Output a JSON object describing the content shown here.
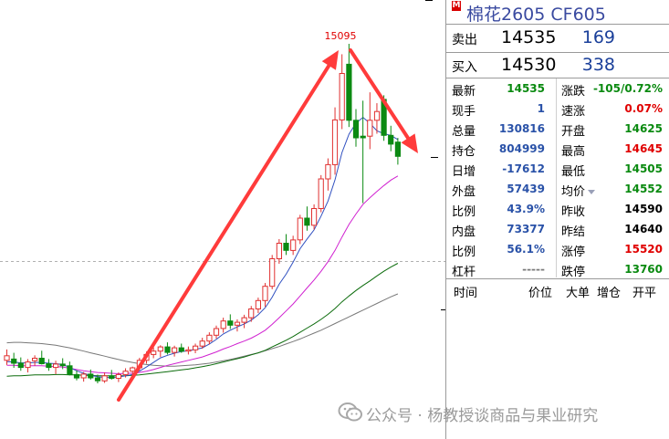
{
  "chart": {
    "peak_label": "15095",
    "colors": {
      "up_candle": "#e03030",
      "down_candle": "#0b8a12",
      "ma_fast": "#3050c0",
      "ma_mid": "#d020d0",
      "ma_slow": "#0b6b0b",
      "ma_long": "#787878",
      "arrow": "#ff3b3b",
      "ref_line": "#b0b0b0"
    },
    "candles": [
      {
        "o": 14338,
        "h": 14364,
        "l": 14327,
        "c": 14349,
        "color": "red"
      },
      {
        "o": 14341,
        "h": 14356,
        "l": 14320,
        "c": 14331,
        "color": "green"
      },
      {
        "o": 14331,
        "h": 14345,
        "l": 14313,
        "c": 14321,
        "color": "green"
      },
      {
        "o": 14321,
        "h": 14341,
        "l": 14309,
        "c": 14334,
        "color": "red"
      },
      {
        "o": 14337,
        "h": 14350,
        "l": 14325,
        "c": 14343,
        "color": "red"
      },
      {
        "o": 14343,
        "h": 14361,
        "l": 14328,
        "c": 14330,
        "color": "green"
      },
      {
        "o": 14330,
        "h": 14341,
        "l": 14313,
        "c": 14321,
        "color": "green"
      },
      {
        "o": 14321,
        "h": 14337,
        "l": 14305,
        "c": 14329,
        "color": "red"
      },
      {
        "o": 14329,
        "h": 14343,
        "l": 14317,
        "c": 14325,
        "color": "green"
      },
      {
        "o": 14325,
        "h": 14335,
        "l": 14302,
        "c": 14304,
        "color": "green"
      },
      {
        "o": 14304,
        "h": 14314,
        "l": 14290,
        "c": 14296,
        "color": "green"
      },
      {
        "o": 14296,
        "h": 14310,
        "l": 14287,
        "c": 14305,
        "color": "red"
      },
      {
        "o": 14305,
        "h": 14316,
        "l": 14292,
        "c": 14296,
        "color": "green"
      },
      {
        "o": 14296,
        "h": 14304,
        "l": 14283,
        "c": 14289,
        "color": "green"
      },
      {
        "o": 14289,
        "h": 14309,
        "l": 14284,
        "c": 14301,
        "color": "red"
      },
      {
        "o": 14301,
        "h": 14315,
        "l": 14292,
        "c": 14295,
        "color": "green"
      },
      {
        "o": 14295,
        "h": 14309,
        "l": 14286,
        "c": 14304,
        "color": "red"
      },
      {
        "o": 14304,
        "h": 14319,
        "l": 14297,
        "c": 14312,
        "color": "red"
      },
      {
        "o": 14312,
        "h": 14323,
        "l": 14302,
        "c": 14320,
        "color": "red"
      },
      {
        "o": 14320,
        "h": 14344,
        "l": 14314,
        "c": 14338,
        "color": "red"
      },
      {
        "o": 14338,
        "h": 14359,
        "l": 14330,
        "c": 14352,
        "color": "red"
      },
      {
        "o": 14352,
        "h": 14369,
        "l": 14343,
        "c": 14360,
        "color": "red"
      },
      {
        "o": 14360,
        "h": 14374,
        "l": 14346,
        "c": 14370,
        "color": "red"
      },
      {
        "o": 14370,
        "h": 14381,
        "l": 14352,
        "c": 14357,
        "color": "green"
      },
      {
        "o": 14357,
        "h": 14373,
        "l": 14347,
        "c": 14368,
        "color": "red"
      },
      {
        "o": 14368,
        "h": 14378,
        "l": 14356,
        "c": 14360,
        "color": "green"
      },
      {
        "o": 14360,
        "h": 14371,
        "l": 14352,
        "c": 14363,
        "color": "red"
      },
      {
        "o": 14363,
        "h": 14378,
        "l": 14355,
        "c": 14372,
        "color": "red"
      },
      {
        "o": 14372,
        "h": 14392,
        "l": 14366,
        "c": 14384,
        "color": "red"
      },
      {
        "o": 14384,
        "h": 14405,
        "l": 14376,
        "c": 14398,
        "color": "red"
      },
      {
        "o": 14398,
        "h": 14421,
        "l": 14390,
        "c": 14414,
        "color": "red"
      },
      {
        "o": 14414,
        "h": 14440,
        "l": 14404,
        "c": 14432,
        "color": "red"
      },
      {
        "o": 14432,
        "h": 14448,
        "l": 14413,
        "c": 14422,
        "color": "green"
      },
      {
        "o": 14422,
        "h": 14436,
        "l": 14407,
        "c": 14429,
        "color": "red"
      },
      {
        "o": 14429,
        "h": 14447,
        "l": 14415,
        "c": 14440,
        "color": "red"
      },
      {
        "o": 14440,
        "h": 14468,
        "l": 14430,
        "c": 14461,
        "color": "red"
      },
      {
        "o": 14461,
        "h": 14488,
        "l": 14451,
        "c": 14481,
        "color": "red"
      },
      {
        "o": 14481,
        "h": 14523,
        "l": 14466,
        "c": 14515,
        "color": "red"
      },
      {
        "o": 14515,
        "h": 14590,
        "l": 14508,
        "c": 14581,
        "color": "red"
      },
      {
        "o": 14581,
        "h": 14628,
        "l": 14569,
        "c": 14618,
        "color": "red"
      },
      {
        "o": 14618,
        "h": 14640,
        "l": 14590,
        "c": 14601,
        "color": "green"
      },
      {
        "o": 14601,
        "h": 14636,
        "l": 14590,
        "c": 14626,
        "color": "red"
      },
      {
        "o": 14626,
        "h": 14686,
        "l": 14616,
        "c": 14678,
        "color": "red"
      },
      {
        "o": 14678,
        "h": 14706,
        "l": 14648,
        "c": 14661,
        "color": "green"
      },
      {
        "o": 14661,
        "h": 14711,
        "l": 14651,
        "c": 14701,
        "color": "red"
      },
      {
        "o": 14701,
        "h": 14781,
        "l": 14692,
        "c": 14772,
        "color": "red"
      },
      {
        "o": 14772,
        "h": 14821,
        "l": 14744,
        "c": 14806,
        "color": "red"
      },
      {
        "o": 14806,
        "h": 14943,
        "l": 14782,
        "c": 14913,
        "color": "red"
      },
      {
        "o": 14913,
        "h": 15070,
        "l": 14891,
        "c": 15024,
        "color": "red"
      },
      {
        "o": 15046,
        "h": 15095,
        "l": 14896,
        "c": 14912,
        "color": "green"
      },
      {
        "o": 14912,
        "h": 14939,
        "l": 14849,
        "c": 14870,
        "color": "green"
      },
      {
        "o": 14870,
        "h": 14959,
        "l": 14714,
        "c": 14874,
        "color": "green"
      },
      {
        "o": 14874,
        "h": 14979,
        "l": 14843,
        "c": 14912,
        "color": "red"
      },
      {
        "o": 14912,
        "h": 14953,
        "l": 14880,
        "c": 14933,
        "color": "red"
      },
      {
        "o": 14962,
        "h": 14972,
        "l": 14863,
        "c": 14876,
        "color": "green"
      },
      {
        "o": 14876,
        "h": 14899,
        "l": 14838,
        "c": 14855,
        "color": "green"
      },
      {
        "o": 14860,
        "h": 14870,
        "l": 14806,
        "c": 14826,
        "color": "green"
      }
    ],
    "ma_fast": [
      14335,
      14334,
      14332,
      14332,
      14333,
      14333,
      14331,
      14330,
      14328,
      14321,
      14313,
      14307,
      14302,
      14299,
      14297,
      14297,
      14298,
      14301,
      14304,
      14312,
      14322,
      14333,
      14344,
      14350,
      14355,
      14359,
      14361,
      14364,
      14368,
      14377,
      14388,
      14401,
      14410,
      14418,
      14425,
      14434,
      14447,
      14464,
      14489,
      14520,
      14544,
      14573,
      14605,
      14628,
      14650,
      14683,
      14719,
      14770,
      14835,
      14879,
      14905,
      14919,
      14905,
      14887,
      14880,
      14876,
      14866
    ],
    "ma_mid": [
      14326,
      14326,
      14325,
      14325,
      14325,
      14325,
      14324,
      14323,
      14322,
      14319,
      14316,
      14313,
      14311,
      14309,
      14308,
      14307,
      14306,
      14307,
      14307,
      14309,
      14312,
      14316,
      14321,
      14326,
      14330,
      14334,
      14338,
      14342,
      14346,
      14352,
      14358,
      14365,
      14371,
      14378,
      14384,
      14391,
      14400,
      14410,
      14424,
      14440,
      14456,
      14473,
      14492,
      14511,
      14530,
      14551,
      14574,
      14601,
      14633,
      14663,
      14688,
      14711,
      14727,
      14742,
      14756,
      14769,
      14779
    ],
    "ma_slow": [
      14300,
      14301,
      14301,
      14302,
      14303,
      14303,
      14303,
      14304,
      14304,
      14303,
      14303,
      14302,
      14302,
      14301,
      14301,
      14301,
      14301,
      14301,
      14302,
      14303,
      14305,
      14307,
      14309,
      14311,
      14313,
      14315,
      14317,
      14320,
      14323,
      14326,
      14330,
      14334,
      14338,
      14342,
      14346,
      14351,
      14356,
      14362,
      14370,
      14378,
      14386,
      14395,
      14405,
      14415,
      14425,
      14436,
      14448,
      14462,
      14478,
      14492,
      14505,
      14517,
      14528,
      14540,
      14551,
      14561,
      14570
    ],
    "ma_long": [
      14380,
      14381,
      14381,
      14380,
      14379,
      14378,
      14376,
      14374,
      14371,
      14368,
      14364,
      14360,
      14356,
      14352,
      14348,
      14344,
      14340,
      14336,
      14333,
      14330,
      14328,
      14326,
      14325,
      14324,
      14324,
      14325,
      14326,
      14327,
      14329,
      14331,
      14334,
      14337,
      14340,
      14344,
      14348,
      14352,
      14356,
      14361,
      14366,
      14371,
      14377,
      14383,
      14389,
      14396,
      14403,
      14410,
      14418,
      14426,
      14434,
      14442,
      14450,
      14458,
      14466,
      14474,
      14482,
      14490,
      14497
    ]
  },
  "panel": {
    "badge": "M",
    "title": "棉花2605  CF605",
    "sell": {
      "label": "卖出",
      "price": "14535",
      "volume": "169"
    },
    "buy": {
      "label": "买入",
      "price": "14530",
      "volume": "338"
    },
    "quotes": [
      {
        "l1": "最新",
        "v1": "14535",
        "c1": "green",
        "l2": "涨跌",
        "v2": "-105/0.72%",
        "c2": "green"
      },
      {
        "l1": "现手",
        "v1": "1",
        "c1": "blue",
        "l2": "速涨",
        "v2": "0.07%",
        "c2": "red"
      },
      {
        "l1": "总量",
        "v1": "130816",
        "c1": "blue",
        "l2": "开盘",
        "v2": "14625",
        "c2": "green"
      },
      {
        "l1": "持仓",
        "v1": "804999",
        "c1": "blue",
        "l2": "最高",
        "v2": "14645",
        "c2": "red"
      },
      {
        "l1": "日增",
        "v1": "-17612",
        "c1": "blue",
        "l2": "最低",
        "v2": "14505",
        "c2": "green"
      },
      {
        "l1": "外盘",
        "v1": "57439",
        "c1": "blue",
        "l2": "均价",
        "v2": "14552",
        "c2": "green"
      },
      {
        "l1": "比例",
        "v1": "43.9%",
        "c1": "blue",
        "l2": "昨收",
        "v2": "14590",
        "c2": "black"
      },
      {
        "l1": "内盘",
        "v1": "73377",
        "c1": "blue",
        "l2": "昨结",
        "v2": "14640",
        "c2": "black"
      },
      {
        "l1": "比例",
        "v1": "56.1%",
        "c1": "blue",
        "l2": "涨停",
        "v2": "15520",
        "c2": "red"
      },
      {
        "l1": "杠杆",
        "v1": "-----",
        "c1": "gray",
        "l2": "跌停",
        "v2": "13760",
        "c2": "green"
      }
    ],
    "footer": {
      "time": "时间",
      "price": "价位",
      "big": "大单",
      "oi_change": "增仓",
      "open_close": "开平"
    }
  },
  "watermark": {
    "text": "公众号 · 杨教授谈商品与果业研究"
  }
}
